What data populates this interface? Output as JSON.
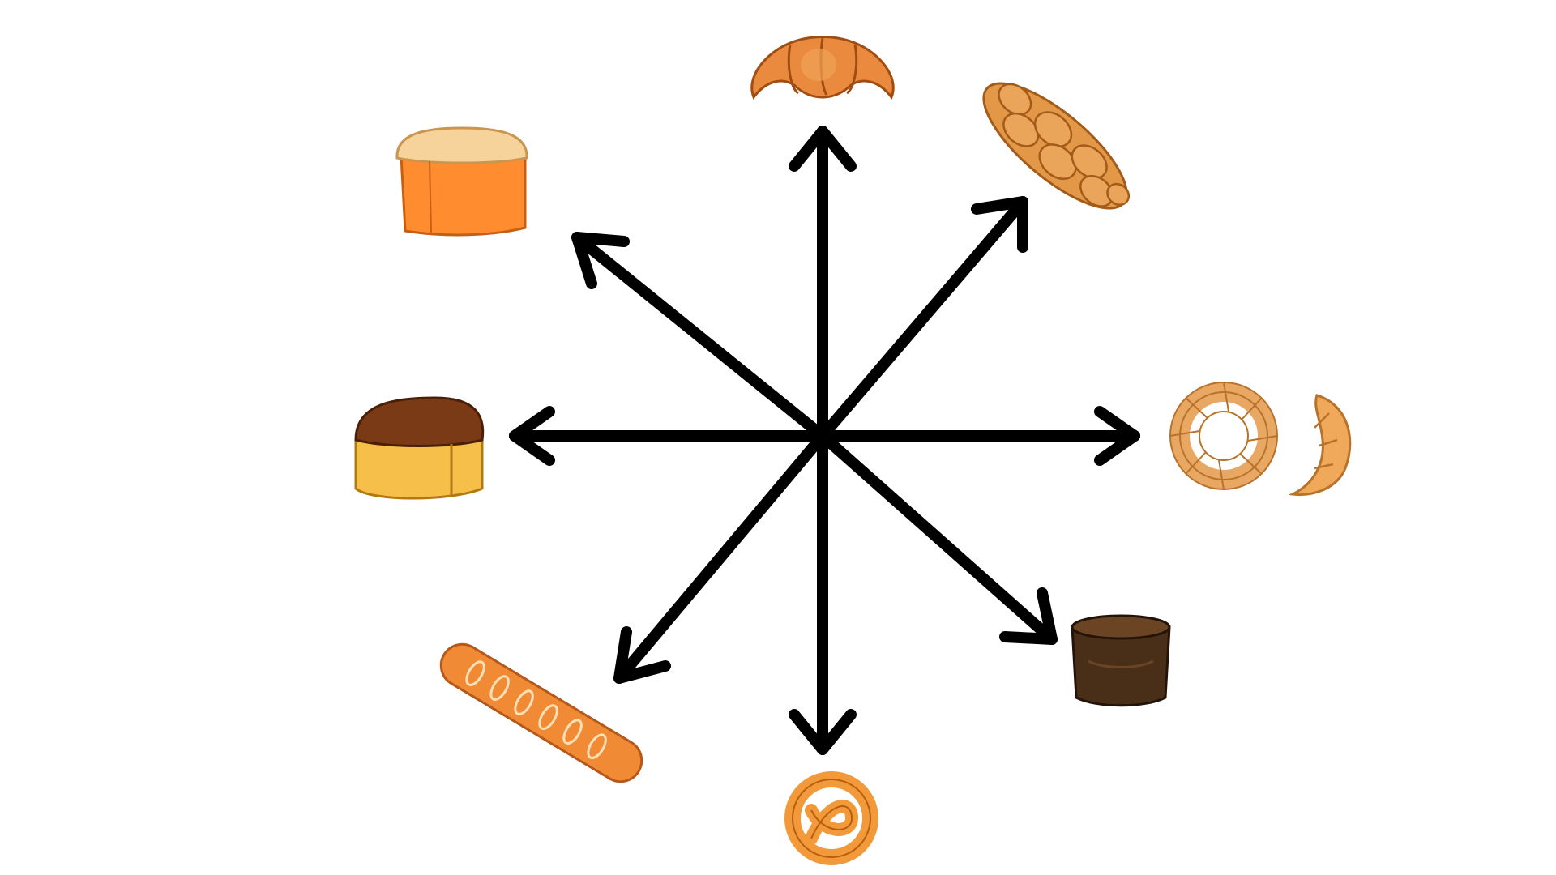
{
  "diagram": {
    "type": "radial-arrows",
    "center_item": "hub",
    "arrow_color": "#000000",
    "items": [
      {
        "id": "croissant",
        "icon": "croissant-icon",
        "direction": "north",
        "colors": [
          "#e98a3e",
          "#c85f1a"
        ]
      },
      {
        "id": "braided-bread",
        "icon": "braided-bread-icon",
        "direction": "northeast",
        "colors": [
          "#e39848",
          "#c26d28"
        ]
      },
      {
        "id": "bagel-croissant",
        "icon": "bagel-and-croissant-icon",
        "direction": "east",
        "colors": [
          "#f0b270",
          "#d07a30"
        ]
      },
      {
        "id": "rye-bread",
        "icon": "rye-bread-icon",
        "direction": "southeast",
        "colors": [
          "#5b3b1e",
          "#3e2612"
        ]
      },
      {
        "id": "pretzel",
        "icon": "pretzel-icon",
        "direction": "south",
        "colors": [
          "#f29a3a",
          "#c96a14"
        ]
      },
      {
        "id": "baguette",
        "icon": "baguette-icon",
        "direction": "southwest",
        "colors": [
          "#f08a35",
          "#c6601a"
        ]
      },
      {
        "id": "brown-loaf",
        "icon": "brown-top-loaf-icon",
        "direction": "west",
        "colors": [
          "#f5bf4a",
          "#7a3a16"
        ]
      },
      {
        "id": "white-loaf",
        "icon": "sandwich-loaf-icon",
        "direction": "northwest",
        "colors": [
          "#ff8c2e",
          "#f6d39a"
        ]
      }
    ]
  }
}
